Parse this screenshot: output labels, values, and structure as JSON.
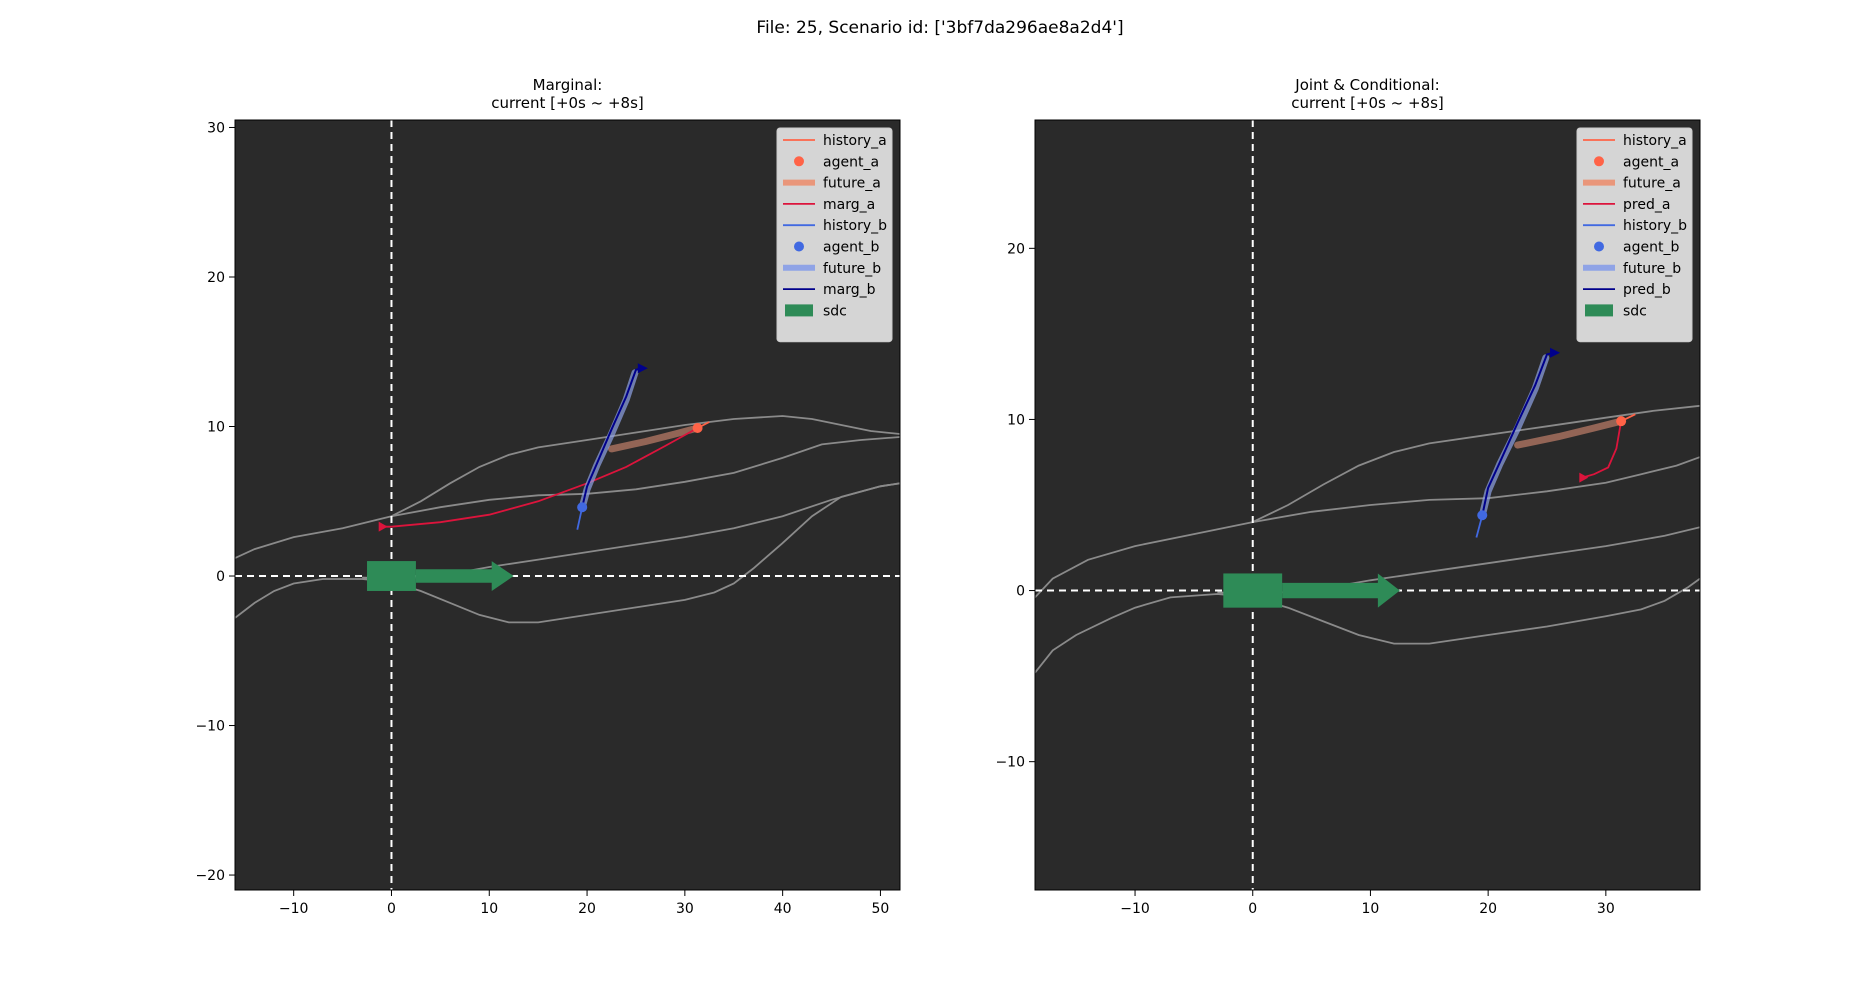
{
  "suptitle": "File: 25, Scenario id: ['3bf7da296ae8a2d4']",
  "colors": {
    "background": "#2a2a2a",
    "roads": "#8a8a8a",
    "history_a": "#ff6347",
    "agent_a": "#ff6347",
    "future_a": "#e9967a",
    "marg_a": "#dc143c",
    "history_b": "#4169e1",
    "agent_b": "#4169e1",
    "future_b": "#8fa3e6",
    "marg_b": "#00008b",
    "sdc": "#2e8b57"
  },
  "chart_data": [
    {
      "type": "line",
      "title": "Marginal:\ncurrent [+0s ~ +8s]",
      "xlim": [
        -16,
        52
      ],
      "ylim": [
        -21,
        30.5
      ],
      "xticks": [
        -10,
        0,
        10,
        20,
        30,
        40,
        50
      ],
      "yticks": [
        -20,
        -10,
        0,
        10,
        20,
        30
      ],
      "legend": {
        "position": "top-right",
        "entries": [
          {
            "label": "history_a",
            "kind": "line",
            "color": "history_a"
          },
          {
            "label": "agent_a",
            "kind": "dot",
            "color": "agent_a"
          },
          {
            "label": "future_a",
            "kind": "thick",
            "color": "future_a"
          },
          {
            "label": "marg_a",
            "kind": "line",
            "color": "marg_a"
          },
          {
            "label": "history_b",
            "kind": "line",
            "color": "history_b"
          },
          {
            "label": "agent_b",
            "kind": "dot",
            "color": "agent_b"
          },
          {
            "label": "future_b",
            "kind": "thick",
            "color": "future_b"
          },
          {
            "label": "marg_b",
            "kind": "line",
            "color": "marg_b"
          },
          {
            "label": "sdc",
            "kind": "patch",
            "color": "sdc"
          }
        ]
      },
      "roads": [
        [
          [
            -16,
            1.2
          ],
          [
            -14,
            1.8
          ],
          [
            -10,
            2.6
          ],
          [
            -5,
            3.2
          ],
          [
            0,
            4.0
          ],
          [
            5,
            4.6
          ],
          [
            10,
            5.1
          ],
          [
            15,
            5.4
          ],
          [
            20,
            5.5
          ],
          [
            25,
            5.8
          ],
          [
            30,
            6.3
          ],
          [
            35,
            6.9
          ],
          [
            40,
            7.9
          ],
          [
            44,
            8.8
          ],
          [
            48,
            9.1
          ],
          [
            52,
            9.3
          ]
        ],
        [
          [
            -16,
            -2.8
          ],
          [
            -14,
            -1.8
          ],
          [
            -12,
            -1.0
          ],
          [
            -10,
            -0.5
          ],
          [
            -7,
            -0.2
          ],
          [
            -3,
            -0.2
          ],
          [
            0,
            -0.4
          ],
          [
            3,
            -1.0
          ],
          [
            6,
            -1.8
          ],
          [
            9,
            -2.6
          ],
          [
            12,
            -3.1
          ],
          [
            15,
            -3.1
          ],
          [
            20,
            -2.6
          ],
          [
            25,
            -2.1
          ],
          [
            30,
            -1.6
          ],
          [
            33,
            -1.1
          ],
          [
            35,
            -0.5
          ],
          [
            37,
            0.5
          ],
          [
            40,
            2.2
          ],
          [
            43,
            4.0
          ],
          [
            46,
            5.3
          ],
          [
            50,
            6.0
          ],
          [
            52,
            6.2
          ]
        ],
        [
          [
            0,
            4.0
          ],
          [
            3,
            5.0
          ],
          [
            6,
            6.2
          ],
          [
            9,
            7.3
          ],
          [
            12,
            8.1
          ],
          [
            15,
            8.6
          ],
          [
            20,
            9.1
          ],
          [
            25,
            9.6
          ],
          [
            30,
            10.1
          ],
          [
            35,
            10.5
          ],
          [
            40,
            10.7
          ],
          [
            43,
            10.5
          ],
          [
            46,
            10.1
          ],
          [
            49,
            9.7
          ],
          [
            52,
            9.5
          ]
        ],
        [
          [
            -3,
            -0.1
          ],
          [
            0,
            -0.2
          ],
          [
            5,
            0.0
          ],
          [
            10,
            0.6
          ],
          [
            15,
            1.1
          ],
          [
            20,
            1.6
          ],
          [
            25,
            2.1
          ],
          [
            30,
            2.6
          ],
          [
            35,
            3.2
          ],
          [
            40,
            4.0
          ],
          [
            45,
            5.1
          ],
          [
            50,
            6.0
          ],
          [
            52,
            6.2
          ]
        ]
      ],
      "history_a": [
        [
          32.5,
          10.3
        ],
        [
          31.3,
          9.9
        ]
      ],
      "agent_a": [
        31.3,
        9.9
      ],
      "future_a": [
        [
          22.5,
          8.5
        ],
        [
          26,
          9.0
        ],
        [
          29,
          9.5
        ],
        [
          31.3,
          9.9
        ]
      ],
      "pred_a": [
        [
          31.3,
          9.9
        ],
        [
          28,
          8.7
        ],
        [
          24,
          7.3
        ],
        [
          20,
          6.2
        ],
        [
          15,
          5.0
        ],
        [
          10,
          4.1
        ],
        [
          5,
          3.6
        ],
        [
          0,
          3.3
        ],
        [
          -1,
          3.3
        ]
      ],
      "pred_a_arrow": [
        -1,
        3.3
      ],
      "history_b": [
        [
          19.5,
          4.6
        ],
        [
          19.0,
          3.1
        ]
      ],
      "agent_b": [
        19.5,
        4.6
      ],
      "future_b": [
        [
          19.5,
          4.6
        ],
        [
          20,
          5.8
        ],
        [
          21,
          7.4
        ],
        [
          22.5,
          9.5
        ],
        [
          24,
          11.8
        ],
        [
          24.9,
          13.6
        ]
      ],
      "pred_b": [
        [
          19.5,
          4.6
        ],
        [
          20,
          6.0
        ],
        [
          21,
          7.5
        ],
        [
          22.5,
          9.8
        ],
        [
          24,
          12.0
        ],
        [
          25,
          13.8
        ],
        [
          25.6,
          13.9
        ]
      ],
      "pred_b_arrow": [
        25.6,
        13.9
      ],
      "sdc_box": [
        -2.5,
        2.5,
        -1.0,
        1.0
      ],
      "sdc_arrow": [
        [
          2.5,
          0
        ],
        [
          12.5,
          0
        ]
      ]
    },
    {
      "type": "line",
      "title": "Joint & Conditional:\ncurrent [+0s ~ +8s]",
      "xlim": [
        -18.5,
        38
      ],
      "ylim": [
        -17.5,
        27.5
      ],
      "xticks": [
        -10,
        0,
        10,
        20,
        30
      ],
      "yticks": [
        -10,
        0,
        10,
        20
      ],
      "legend": {
        "position": "top-right",
        "entries": [
          {
            "label": "history_a",
            "kind": "line",
            "color": "history_a"
          },
          {
            "label": "agent_a",
            "kind": "dot",
            "color": "agent_a"
          },
          {
            "label": "future_a",
            "kind": "thick",
            "color": "future_a"
          },
          {
            "label": "pred_a",
            "kind": "line",
            "color": "marg_a"
          },
          {
            "label": "history_b",
            "kind": "line",
            "color": "history_b"
          },
          {
            "label": "agent_b",
            "kind": "dot",
            "color": "agent_b"
          },
          {
            "label": "future_b",
            "kind": "thick",
            "color": "future_b"
          },
          {
            "label": "pred_b",
            "kind": "line",
            "color": "marg_b"
          },
          {
            "label": "sdc",
            "kind": "patch",
            "color": "sdc"
          }
        ]
      },
      "roads": [
        [
          [
            -18.5,
            -0.4
          ],
          [
            -17,
            0.7
          ],
          [
            -14,
            1.8
          ],
          [
            -10,
            2.6
          ],
          [
            -5,
            3.3
          ],
          [
            0,
            4.0
          ],
          [
            5,
            4.6
          ],
          [
            10,
            5.0
          ],
          [
            15,
            5.3
          ],
          [
            20,
            5.4
          ],
          [
            25,
            5.8
          ],
          [
            30,
            6.3
          ],
          [
            33,
            6.8
          ],
          [
            36,
            7.3
          ],
          [
            38,
            7.8
          ]
        ],
        [
          [
            -18.5,
            -4.8
          ],
          [
            -17,
            -3.5
          ],
          [
            -15,
            -2.6
          ],
          [
            -12,
            -1.6
          ],
          [
            -10,
            -1.0
          ],
          [
            -7,
            -0.4
          ],
          [
            -3,
            -0.2
          ],
          [
            0,
            -0.4
          ],
          [
            3,
            -1.0
          ],
          [
            6,
            -1.8
          ],
          [
            9,
            -2.6
          ],
          [
            12,
            -3.1
          ],
          [
            15,
            -3.1
          ],
          [
            20,
            -2.6
          ],
          [
            25,
            -2.1
          ],
          [
            30,
            -1.5
          ],
          [
            33,
            -1.1
          ],
          [
            35,
            -0.6
          ],
          [
            37,
            0.2
          ],
          [
            38,
            0.7
          ]
        ],
        [
          [
            0,
            4.0
          ],
          [
            3,
            5.0
          ],
          [
            6,
            6.2
          ],
          [
            9,
            7.3
          ],
          [
            12,
            8.1
          ],
          [
            15,
            8.6
          ],
          [
            20,
            9.1
          ],
          [
            25,
            9.6
          ],
          [
            30,
            10.1
          ],
          [
            34,
            10.5
          ],
          [
            38,
            10.8
          ]
        ],
        [
          [
            -3,
            -0.1
          ],
          [
            0,
            -0.2
          ],
          [
            5,
            0.0
          ],
          [
            10,
            0.6
          ],
          [
            15,
            1.1
          ],
          [
            20,
            1.6
          ],
          [
            25,
            2.1
          ],
          [
            30,
            2.6
          ],
          [
            35,
            3.2
          ],
          [
            38,
            3.7
          ]
        ]
      ],
      "history_a": [
        [
          32.5,
          10.3
        ],
        [
          31.3,
          9.9
        ]
      ],
      "agent_a": [
        31.3,
        9.9
      ],
      "future_a": [
        [
          22.5,
          8.5
        ],
        [
          26,
          9.0
        ],
        [
          29,
          9.5
        ],
        [
          31.3,
          9.9
        ]
      ],
      "pred_a": [
        [
          31.3,
          9.9
        ],
        [
          30.9,
          8.3
        ],
        [
          30.2,
          7.2
        ],
        [
          29,
          6.8
        ],
        [
          28,
          6.6
        ]
      ],
      "pred_a_arrow": [
        28,
        6.6
      ],
      "history_b": [
        [
          19.5,
          4.4
        ],
        [
          19.0,
          3.1
        ]
      ],
      "agent_b": [
        19.5,
        4.4
      ],
      "future_b": [
        [
          19.5,
          4.4
        ],
        [
          20,
          5.8
        ],
        [
          21,
          7.4
        ],
        [
          22.5,
          9.5
        ],
        [
          24,
          11.8
        ],
        [
          24.9,
          13.6
        ]
      ],
      "pred_b": [
        [
          19.5,
          4.4
        ],
        [
          20,
          6.0
        ],
        [
          21,
          7.5
        ],
        [
          22.5,
          9.8
        ],
        [
          24,
          12.0
        ],
        [
          25,
          13.8
        ],
        [
          25.6,
          13.9
        ]
      ],
      "pred_b_arrow": [
        25.6,
        13.9
      ],
      "sdc_box": [
        -2.5,
        2.5,
        -1.0,
        1.0
      ],
      "sdc_arrow": [
        [
          2.5,
          0
        ],
        [
          12.5,
          0
        ]
      ]
    }
  ]
}
